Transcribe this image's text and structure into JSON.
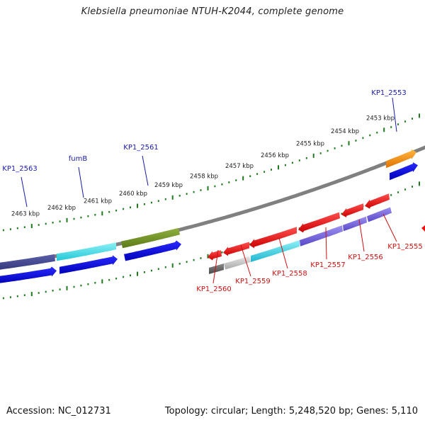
{
  "title": "Klebsiella pneumoniae NTUH-K2044, complete genome",
  "footer": {
    "accession": "Accession: NC_012731",
    "summary": "Topology: circular; Length: 5,248,520 bp; Genes: 5,110"
  },
  "colors": {
    "backbone": "#808080",
    "ticks": "#1f7a1f",
    "label_forward": "#1a1aa6",
    "label_reverse": "#cc1111",
    "gene_forward": "#0a0adc",
    "gene_reverse": "#ee1111"
  },
  "kbp_ticks": [
    "2453 kbp",
    "2454 kbp",
    "2455 kbp",
    "2456 kbp",
    "2457 kbp",
    "2458 kbp",
    "2459 kbp",
    "2460 kbp",
    "2461 kbp",
    "2462 kbp",
    "2463 kbp"
  ],
  "gene_labels_forward": [
    "KP1_2553",
    "KP1_2561",
    "fumB",
    "KP1_2563"
  ],
  "gene_labels_reverse": [
    "KP1_2555",
    "KP1_2556",
    "KP1_2557",
    "KP1_2558",
    "KP1_2559",
    "KP1_2560"
  ]
}
